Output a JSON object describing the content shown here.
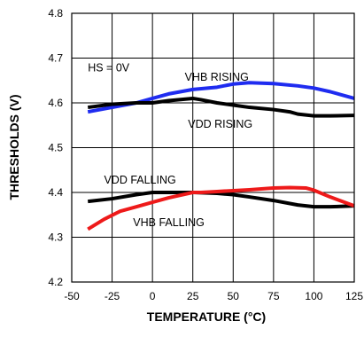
{
  "chart_data": {
    "type": "line",
    "xlabel": "TEMPERATURE (°C)",
    "ylabel": "THRESHOLDS (V)",
    "xlim": [
      -50,
      125
    ],
    "ylim": [
      4.2,
      4.8
    ],
    "x_ticks": [
      -50,
      -25,
      0,
      25,
      50,
      75,
      100,
      125
    ],
    "x_tick_labels": [
      "-50",
      "-25",
      "0",
      "25",
      "50",
      "75",
      "100",
      "125"
    ],
    "y_ticks": [
      4.2,
      4.3,
      4.4,
      4.5,
      4.6,
      4.7,
      4.8
    ],
    "y_tick_labels": [
      "4.2",
      "4.3",
      "4.4",
      "4.5",
      "4.6",
      "4.7",
      "4.8"
    ],
    "grid": true,
    "annotations": [
      {
        "text": "HS = 0V",
        "x": -40,
        "y": 4.67
      },
      {
        "text": "VHB RISING",
        "x": 20,
        "y": 4.65
      },
      {
        "text": "VDD RISING",
        "x": 22,
        "y": 4.545
      },
      {
        "text": "VDD FALLING",
        "x": -30,
        "y": 4.42
      },
      {
        "text": "VHB FALLING",
        "x": -12,
        "y": 4.325
      }
    ],
    "series": [
      {
        "name": "VHB RISING",
        "color": "#1f2cf0",
        "x": [
          -40,
          -25,
          -10,
          0,
          10,
          25,
          40,
          50,
          60,
          75,
          90,
          100,
          110,
          125
        ],
        "y": [
          4.58,
          4.59,
          4.6,
          4.61,
          4.62,
          4.63,
          4.635,
          4.642,
          4.645,
          4.643,
          4.638,
          4.633,
          4.625,
          4.61
        ]
      },
      {
        "name": "VDD RISING",
        "color": "#000000",
        "x": [
          -40,
          -25,
          -10,
          0,
          10,
          25,
          30,
          40,
          50,
          60,
          75,
          85,
          90,
          100,
          110,
          125
        ],
        "y": [
          4.59,
          4.597,
          4.6,
          4.6,
          4.605,
          4.61,
          4.607,
          4.6,
          4.595,
          4.59,
          4.585,
          4.58,
          4.575,
          4.571,
          4.571,
          4.572
        ]
      },
      {
        "name": "VDD FALLING",
        "color": "#000000",
        "x": [
          -40,
          -25,
          -10,
          0,
          10,
          25,
          40,
          50,
          60,
          75,
          90,
          100,
          110,
          125
        ],
        "y": [
          4.38,
          4.386,
          4.395,
          4.4,
          4.4,
          4.4,
          4.398,
          4.395,
          4.39,
          4.382,
          4.372,
          4.368,
          4.368,
          4.37
        ]
      },
      {
        "name": "VHB FALLING",
        "color": "#ee1a1a",
        "x": [
          -40,
          -30,
          -20,
          -10,
          0,
          10,
          20,
          25,
          30,
          40,
          50,
          60,
          75,
          85,
          95,
          100,
          110,
          125
        ],
        "y": [
          4.318,
          4.34,
          4.358,
          4.368,
          4.378,
          4.388,
          4.396,
          4.4,
          4.4,
          4.402,
          4.404,
          4.406,
          4.41,
          4.411,
          4.41,
          4.405,
          4.39,
          4.37
        ]
      }
    ]
  }
}
